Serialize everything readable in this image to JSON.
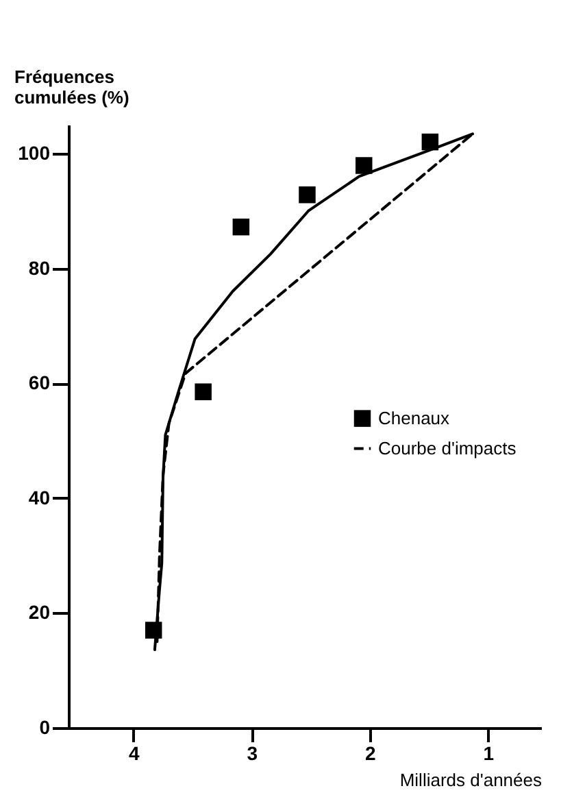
{
  "chart_data": {
    "type": "scatter",
    "xlabel": "Milliards d'années",
    "ylabel": "Fréquences cumulées (%)",
    "xlim": [
      4.55,
      0.55
    ],
    "xticks": [
      4,
      3,
      2,
      1
    ],
    "ylim": [
      0,
      105
    ],
    "yticks": [
      0,
      20,
      40,
      60,
      80,
      100
    ],
    "grid": false,
    "legend": "right",
    "series": [
      {
        "name": "Chenaux",
        "marker": "square",
        "color": "#000000",
        "x": [
          3.83,
          3.41,
          3.09,
          2.53,
          2.05,
          1.49
        ],
        "values": [
          17,
          58.5,
          87.2,
          92.8,
          97.9,
          102
        ]
      },
      {
        "type": "line",
        "marker": "none",
        "line_style": "solid",
        "color": "#000000",
        "x": [
          3.82,
          3.78,
          3.76,
          3.75,
          3.73,
          3.62,
          3.48,
          3.16,
          2.84,
          2.52,
          2.09,
          1.49,
          1.13
        ],
        "values": [
          13.6,
          24,
          28.7,
          43.6,
          51,
          58.5,
          67.7,
          76,
          82.5,
          90,
          96,
          100.6,
          103.4
        ]
      },
      {
        "name": "Courbe d'impacts",
        "type": "line",
        "marker": "none",
        "line_style": "dashed",
        "color": "#000000",
        "x": [
          3.8,
          3.78,
          3.75,
          3.7,
          3.56,
          1.13
        ],
        "values": [
          15,
          30,
          44,
          53,
          61.7,
          103.4
        ]
      }
    ]
  }
}
